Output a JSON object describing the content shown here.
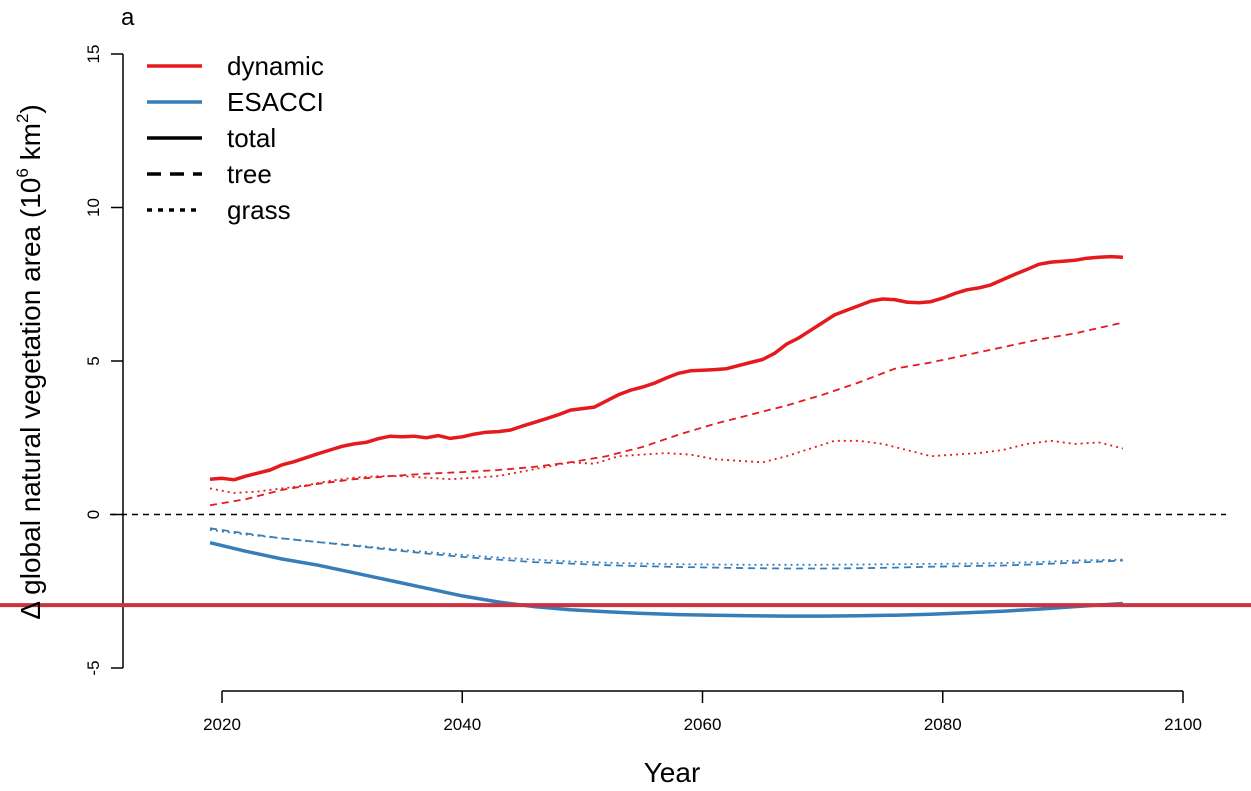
{
  "panel_label": "a",
  "colors": {
    "dynamic": "#e41a1c",
    "esacci": "#377eb8",
    "black": "#000000",
    "overlay": "#cc3340"
  },
  "legend": [
    {
      "label": "dynamic",
      "color": "#e41a1c",
      "style": "solid",
      "thick": true
    },
    {
      "label": "ESACCI",
      "color": "#377eb8",
      "style": "solid",
      "thick": true
    },
    {
      "label": "total",
      "color": "#000000",
      "style": "solid",
      "thick": true
    },
    {
      "label": "tree",
      "color": "#000000",
      "style": "dashed",
      "thick": true
    },
    {
      "label": "grass",
      "color": "#000000",
      "style": "dotted",
      "thick": true
    }
  ],
  "chart_data": {
    "type": "line",
    "xlabel": "Year",
    "ylabel_main": "Δ global natural vegetation area (10",
    "ylabel_sup1": "6",
    "ylabel_mid": " km",
    "ylabel_sup2": "2",
    "ylabel_end": ")",
    "xlim": [
      2019,
      2100
    ],
    "ylim": [
      -5,
      15
    ],
    "x_ticks": [
      2020,
      2040,
      2060,
      2080,
      2100
    ],
    "y_ticks": [
      -5,
      0,
      5,
      10,
      15
    ],
    "x_tick_labels": [
      "2020",
      "2040",
      "2060",
      "2080",
      "2100"
    ],
    "y_tick_labels": [
      "-5",
      "0",
      "5",
      "10",
      "15"
    ],
    "reference_line": {
      "y": 0,
      "style": "dashed"
    },
    "horizontal_overlay": {
      "y": -2.95
    },
    "series": [
      {
        "name": "dynamic total",
        "color": "#e41a1c",
        "style": "solid",
        "x": [
          2019,
          2020,
          2021,
          2022,
          2023,
          2024,
          2025,
          2026,
          2027,
          2028,
          2029,
          2030,
          2031,
          2032,
          2033,
          2034,
          2035,
          2036,
          2037,
          2038,
          2039,
          2040,
          2041,
          2042,
          2043,
          2044,
          2045,
          2046,
          2047,
          2048,
          2049,
          2050,
          2051,
          2052,
          2053,
          2054,
          2055,
          2056,
          2057,
          2058,
          2059,
          2060,
          2061,
          2062,
          2063,
          2064,
          2065,
          2066,
          2067,
          2068,
          2069,
          2070,
          2071,
          2072,
          2073,
          2074,
          2075,
          2076,
          2077,
          2078,
          2079,
          2080,
          2081,
          2082,
          2083,
          2084,
          2085,
          2086,
          2087,
          2088,
          2089,
          2090,
          2091,
          2092,
          2093,
          2094,
          2095
        ],
        "y": [
          1.15,
          1.18,
          1.13,
          1.25,
          1.35,
          1.45,
          1.62,
          1.72,
          1.85,
          1.98,
          2.1,
          2.22,
          2.3,
          2.35,
          2.47,
          2.55,
          2.53,
          2.55,
          2.5,
          2.57,
          2.48,
          2.53,
          2.62,
          2.68,
          2.7,
          2.75,
          2.88,
          3.0,
          3.12,
          3.25,
          3.4,
          3.45,
          3.5,
          3.7,
          3.9,
          4.05,
          4.15,
          4.28,
          4.45,
          4.6,
          4.68,
          4.7,
          4.72,
          4.75,
          4.85,
          4.95,
          5.05,
          5.25,
          5.55,
          5.75,
          6.0,
          6.25,
          6.5,
          6.65,
          6.8,
          6.95,
          7.02,
          7.0,
          6.92,
          6.9,
          6.93,
          7.05,
          7.2,
          7.32,
          7.38,
          7.48,
          7.65,
          7.82,
          7.98,
          8.15,
          8.22,
          8.25,
          8.28,
          8.35,
          8.38,
          8.4,
          8.38
        ]
      },
      {
        "name": "dynamic tree",
        "color": "#e41a1c",
        "style": "dashed",
        "x": [
          2019,
          2022,
          2025,
          2028,
          2031,
          2034,
          2037,
          2040,
          2043,
          2046,
          2049,
          2052,
          2055,
          2058,
          2061,
          2064,
          2067,
          2070,
          2073,
          2076,
          2079,
          2082,
          2085,
          2088,
          2091,
          2095
        ],
        "y": [
          0.3,
          0.5,
          0.8,
          1.0,
          1.15,
          1.25,
          1.33,
          1.38,
          1.45,
          1.55,
          1.7,
          1.9,
          2.2,
          2.6,
          2.95,
          3.25,
          3.55,
          3.9,
          4.3,
          4.75,
          4.95,
          5.2,
          5.45,
          5.7,
          5.9,
          6.25
        ]
      },
      {
        "name": "dynamic grass",
        "color": "#e41a1c",
        "style": "dotted",
        "x": [
          2019,
          2021,
          2023,
          2025,
          2027,
          2029,
          2031,
          2033,
          2035,
          2037,
          2039,
          2041,
          2043,
          2045,
          2047,
          2049,
          2051,
          2053,
          2055,
          2057,
          2059,
          2061,
          2063,
          2065,
          2067,
          2069,
          2071,
          2073,
          2075,
          2077,
          2079,
          2081,
          2083,
          2085,
          2087,
          2089,
          2091,
          2093,
          2095
        ],
        "y": [
          0.85,
          0.7,
          0.75,
          0.85,
          0.95,
          1.1,
          1.2,
          1.25,
          1.25,
          1.2,
          1.15,
          1.2,
          1.25,
          1.4,
          1.55,
          1.7,
          1.65,
          1.9,
          1.95,
          2.0,
          1.95,
          1.8,
          1.75,
          1.7,
          1.9,
          2.15,
          2.4,
          2.4,
          2.3,
          2.1,
          1.9,
          1.95,
          2.0,
          2.1,
          2.3,
          2.4,
          2.3,
          2.35,
          2.15
        ]
      },
      {
        "name": "ESACCI total",
        "color": "#377eb8",
        "style": "solid",
        "x": [
          2019,
          2022,
          2025,
          2028,
          2031,
          2034,
          2037,
          2040,
          2043,
          2046,
          2049,
          2052,
          2055,
          2058,
          2061,
          2064,
          2067,
          2070,
          2073,
          2076,
          2079,
          2082,
          2085,
          2088,
          2091,
          2095
        ],
        "y": [
          -0.92,
          -1.2,
          -1.45,
          -1.65,
          -1.9,
          -2.15,
          -2.4,
          -2.65,
          -2.85,
          -3.0,
          -3.1,
          -3.17,
          -3.22,
          -3.26,
          -3.28,
          -3.3,
          -3.31,
          -3.31,
          -3.3,
          -3.28,
          -3.25,
          -3.2,
          -3.15,
          -3.08,
          -3.0,
          -2.9
        ]
      },
      {
        "name": "ESACCI tree",
        "color": "#377eb8",
        "style": "dashed",
        "x": [
          2019,
          2022,
          2025,
          2028,
          2031,
          2034,
          2037,
          2040,
          2043,
          2046,
          2049,
          2052,
          2055,
          2058,
          2061,
          2064,
          2067,
          2070,
          2073,
          2076,
          2079,
          2082,
          2085,
          2088,
          2091,
          2095
        ],
        "y": [
          -0.45,
          -0.62,
          -0.78,
          -0.9,
          -1.02,
          -1.15,
          -1.27,
          -1.38,
          -1.47,
          -1.55,
          -1.6,
          -1.65,
          -1.68,
          -1.71,
          -1.73,
          -1.75,
          -1.76,
          -1.76,
          -1.75,
          -1.73,
          -1.7,
          -1.68,
          -1.66,
          -1.62,
          -1.57,
          -1.5
        ]
      },
      {
        "name": "ESACCI grass",
        "color": "#377eb8",
        "style": "dotted",
        "x": [
          2019,
          2022,
          2025,
          2028,
          2031,
          2034,
          2037,
          2040,
          2043,
          2046,
          2049,
          2052,
          2055,
          2058,
          2061,
          2064,
          2067,
          2070,
          2073,
          2076,
          2079,
          2082,
          2085,
          2088,
          2091,
          2095
        ],
        "y": [
          -0.5,
          -0.65,
          -0.78,
          -0.9,
          -1.0,
          -1.12,
          -1.22,
          -1.32,
          -1.4,
          -1.47,
          -1.53,
          -1.57,
          -1.6,
          -1.62,
          -1.63,
          -1.64,
          -1.64,
          -1.64,
          -1.63,
          -1.62,
          -1.61,
          -1.6,
          -1.58,
          -1.55,
          -1.5,
          -1.47
        ]
      }
    ]
  }
}
